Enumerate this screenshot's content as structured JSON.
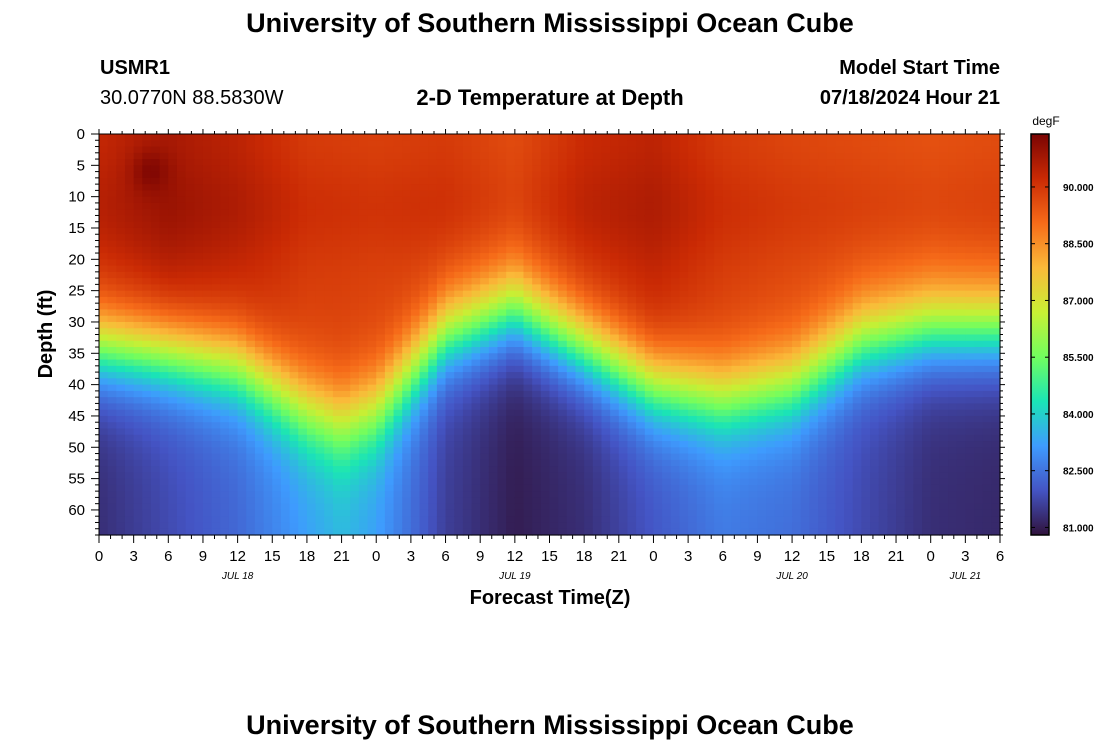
{
  "header": {
    "title": "University of Southern Mississippi Ocean Cube",
    "station": "USMR1",
    "coords": "30.0770N  88.5830W",
    "subtitle": "2-D Temperature at Depth",
    "start_label": "Model Start Time",
    "start_value": "07/18/2024 Hour 21"
  },
  "footer": {
    "title": "University of Southern Mississippi Ocean Cube"
  },
  "chart_data": {
    "type": "heatmap",
    "title": "2-D Temperature at Depth",
    "xlabel": "Forecast Time(Z)",
    "ylabel": "Depth (ft)",
    "x_range_hours": [
      0,
      78
    ],
    "y_range_ft": [
      0,
      64
    ],
    "x_ticks": [
      "0",
      "3",
      "6",
      "9",
      "12",
      "15",
      "18",
      "21",
      "0",
      "3",
      "6",
      "9",
      "12",
      "15",
      "18",
      "21",
      "0",
      "3",
      "6",
      "9",
      "12",
      "15",
      "18",
      "21",
      "0",
      "3",
      "6"
    ],
    "date_labels": [
      {
        "text": "JUL 18",
        "hour": 12
      },
      {
        "text": "JUL 19",
        "hour": 36
      },
      {
        "text": "JUL 20",
        "hour": 60
      },
      {
        "text": "JUL 21",
        "hour": 75
      }
    ],
    "y_ticks": [
      0,
      5,
      10,
      15,
      20,
      25,
      30,
      35,
      40,
      45,
      50,
      55,
      60
    ],
    "colorbar": {
      "unit": "degF",
      "min": 80.8,
      "max": 91.4,
      "tick_labels": [
        "90.000",
        "88.500",
        "87.000",
        "85.500",
        "84.000",
        "82.500",
        "81.000"
      ],
      "tick_values": [
        90.0,
        88.5,
        87.0,
        85.5,
        84.0,
        82.5,
        81.0
      ],
      "colors": [
        "#30123b",
        "#4454c4",
        "#3e9bfe",
        "#1ae4b6",
        "#72fe5e",
        "#c8ef34",
        "#faba39",
        "#f66b19",
        "#ca2a04",
        "#7a0403"
      ]
    },
    "thermocline_depth_ft": {
      "hours": [
        0,
        6,
        12,
        18,
        21,
        24,
        30,
        36,
        42,
        48,
        54,
        60,
        66,
        72,
        78
      ],
      "depth": [
        34,
        35,
        37,
        44,
        46,
        44,
        32,
        28,
        34,
        40,
        42,
        40,
        33,
        31,
        31
      ]
    },
    "surface_temp_degF": {
      "hours": [
        0,
        6,
        12,
        18,
        24,
        30,
        36,
        42,
        48,
        54,
        60,
        66,
        72,
        78
      ],
      "value": [
        90.3,
        90.7,
        90.4,
        89.9,
        89.8,
        89.9,
        89.6,
        90.2,
        90.4,
        89.9,
        89.7,
        89.6,
        89.5,
        89.6
      ]
    },
    "bottom_temp_degF": {
      "hours": [
        0,
        6,
        12,
        18,
        21,
        24,
        30,
        36,
        42,
        48,
        54,
        60,
        66,
        72,
        78
      ],
      "value": [
        81.3,
        81.8,
        82.3,
        83.2,
        83.6,
        83.2,
        81.6,
        81.0,
        81.3,
        82.0,
        82.6,
        82.4,
        81.8,
        81.3,
        81.2
      ]
    },
    "warm_spot": {
      "hour": 4.5,
      "depth_ft": 6,
      "value_degF": 91.3
    }
  }
}
